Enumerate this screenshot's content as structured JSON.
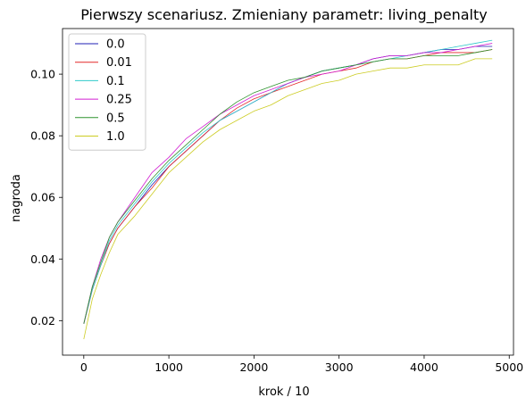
{
  "chart_data": {
    "type": "line",
    "title": "Pierwszy scenariusz. Zmieniany parametr: living_penalty",
    "xlabel": "krok / 10",
    "ylabel": "nagroda",
    "xlim": [
      -250,
      5050
    ],
    "ylim": [
      0.0088,
      0.1148
    ],
    "xticks": [
      0,
      1000,
      2000,
      3000,
      4000,
      5000
    ],
    "yticks": [
      0.02,
      0.04,
      0.06,
      0.08,
      0.1
    ],
    "xtick_labels": [
      "0",
      "1000",
      "2000",
      "3000",
      "4000",
      "5000"
    ],
    "ytick_labels": [
      "0.02",
      "0.04",
      "0.06",
      "0.08",
      "0.10"
    ],
    "grid": false,
    "legend_position": "upper left",
    "x": [
      0,
      100,
      200,
      300,
      400,
      600,
      800,
      1000,
      1200,
      1400,
      1600,
      1800,
      2000,
      2200,
      2400,
      2600,
      2800,
      3000,
      3200,
      3400,
      3600,
      3800,
      4000,
      4200,
      4400,
      4600,
      4800
    ],
    "series": [
      {
        "name": "0.0",
        "color": "#1f1fb4",
        "values": [
          0.019,
          0.03,
          0.038,
          0.045,
          0.05,
          0.057,
          0.064,
          0.07,
          0.075,
          0.08,
          0.085,
          0.088,
          0.091,
          0.094,
          0.097,
          0.099,
          0.101,
          0.102,
          0.103,
          0.105,
          0.106,
          0.106,
          0.107,
          0.108,
          0.108,
          0.109,
          0.109
        ]
      },
      {
        "name": "0.01",
        "color": "#e32929",
        "values": [
          0.019,
          0.03,
          0.038,
          0.045,
          0.05,
          0.057,
          0.063,
          0.07,
          0.075,
          0.08,
          0.085,
          0.089,
          0.092,
          0.094,
          0.096,
          0.098,
          0.1,
          0.101,
          0.102,
          0.104,
          0.105,
          0.105,
          0.106,
          0.107,
          0.107,
          0.107,
          0.108
        ]
      },
      {
        "name": "0.1",
        "color": "#2fc9c9",
        "values": [
          0.019,
          0.03,
          0.038,
          0.046,
          0.051,
          0.058,
          0.065,
          0.071,
          0.076,
          0.081,
          0.085,
          0.088,
          0.091,
          0.094,
          0.097,
          0.099,
          0.101,
          0.102,
          0.103,
          0.104,
          0.105,
          0.106,
          0.107,
          0.108,
          0.109,
          0.11,
          0.111
        ]
      },
      {
        "name": "0.25",
        "color": "#d21fd2",
        "values": [
          0.019,
          0.031,
          0.04,
          0.047,
          0.052,
          0.06,
          0.068,
          0.073,
          0.079,
          0.083,
          0.087,
          0.09,
          0.093,
          0.095,
          0.097,
          0.099,
          0.1,
          0.101,
          0.103,
          0.105,
          0.106,
          0.106,
          0.107,
          0.107,
          0.108,
          0.109,
          0.11
        ]
      },
      {
        "name": "0.5",
        "color": "#2e942e",
        "values": [
          0.019,
          0.031,
          0.039,
          0.047,
          0.052,
          0.059,
          0.066,
          0.072,
          0.077,
          0.082,
          0.087,
          0.091,
          0.094,
          0.096,
          0.098,
          0.099,
          0.101,
          0.102,
          0.103,
          0.104,
          0.105,
          0.105,
          0.106,
          0.106,
          0.106,
          0.107,
          0.108
        ]
      },
      {
        "name": "1.0",
        "color": "#cccc22",
        "values": [
          0.014,
          0.027,
          0.035,
          0.042,
          0.048,
          0.054,
          0.061,
          0.068,
          0.073,
          0.078,
          0.082,
          0.085,
          0.088,
          0.09,
          0.093,
          0.095,
          0.097,
          0.098,
          0.1,
          0.101,
          0.102,
          0.102,
          0.103,
          0.103,
          0.103,
          0.105,
          0.105
        ]
      }
    ]
  }
}
